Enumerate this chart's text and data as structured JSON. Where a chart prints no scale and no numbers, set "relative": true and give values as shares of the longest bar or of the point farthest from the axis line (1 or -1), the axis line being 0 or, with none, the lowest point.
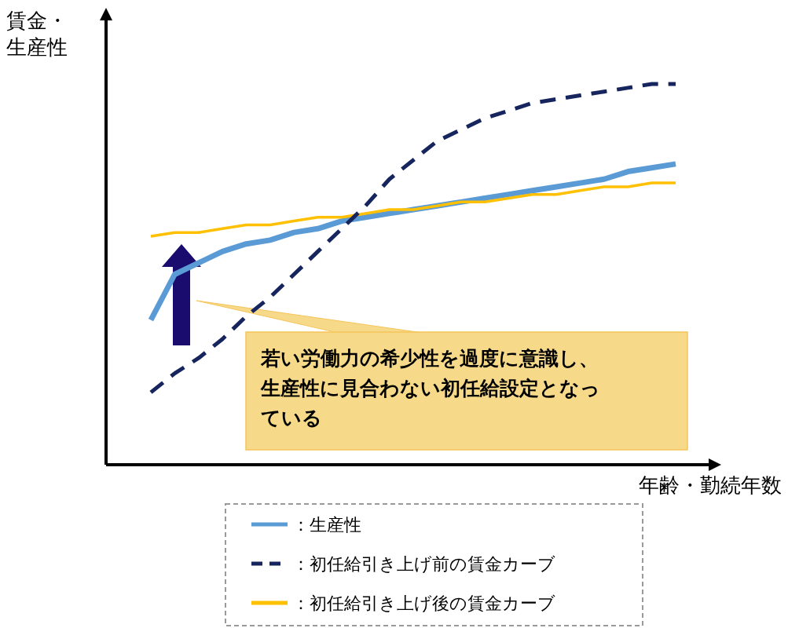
{
  "chart_data": {
    "type": "line",
    "relative": true,
    "xlabel": "年齢・勤続年数",
    "ylabel": "賃金・生産性",
    "categories": [
      null,
      null,
      null,
      null,
      null,
      null,
      null,
      null,
      null,
      null,
      null,
      null,
      null,
      null,
      null,
      null,
      null,
      null,
      null,
      null,
      null,
      null,
      null
    ],
    "series": [
      {
        "name": "：生産性",
        "color": "#5b9bd5",
        "line_style": "solid",
        "values": [
          0.38,
          0.5,
          0.53,
          0.56,
          0.58,
          0.59,
          0.61,
          0.62,
          0.64,
          0.65,
          0.66,
          0.67,
          0.68,
          0.69,
          0.7,
          0.71,
          0.72,
          0.73,
          0.74,
          0.75,
          0.77,
          0.78,
          0.79
        ]
      },
      {
        "name": "：初任給引き上げ前の賃金カーブ",
        "color": "#17255e",
        "line_style": "dashed",
        "values": [
          0.19,
          0.24,
          0.28,
          0.33,
          0.39,
          0.44,
          0.5,
          0.56,
          0.62,
          0.68,
          0.75,
          0.8,
          0.85,
          0.88,
          0.91,
          0.93,
          0.95,
          0.96,
          0.97,
          0.98,
          0.99,
          1.0,
          1.0
        ]
      },
      {
        "name": "：初任給引き上げ後の賃金カーブ",
        "color": "#ffc000",
        "line_style": "solid",
        "values": [
          0.6,
          0.61,
          0.61,
          0.62,
          0.63,
          0.63,
          0.64,
          0.65,
          0.65,
          0.66,
          0.67,
          0.67,
          0.68,
          0.69,
          0.69,
          0.7,
          0.71,
          0.71,
          0.72,
          0.73,
          0.73,
          0.74,
          0.74
        ]
      }
    ],
    "legend": "bottom",
    "annotations": [
      "若い労働力の希少性を過度に意識し、生産性に見合わない初任給設定となっている"
    ]
  }
}
